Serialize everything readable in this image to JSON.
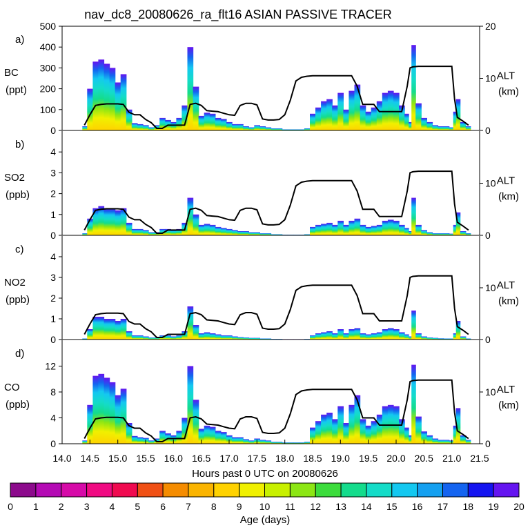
{
  "title": "nav_dc8_20080626_ra_flt16 ASIAN PASSIVE TRACER",
  "xaxis": {
    "label": "Hours past 0 UTC on 20080626",
    "range": [
      14.0,
      21.5
    ],
    "ticks": [
      14.0,
      14.5,
      15.0,
      15.5,
      16.0,
      16.5,
      17.0,
      17.5,
      18.0,
      18.5,
      19.0,
      19.5,
      20.0,
      20.5,
      21.0,
      21.5
    ],
    "tick_labels": [
      "14.0",
      "14.5",
      "15.0",
      "15.5",
      "16.0",
      "16.5",
      "17.0",
      "17.5",
      "18.0",
      "18.5",
      "19.0",
      "19.5",
      "20.0",
      "20.5",
      "21.0",
      "21.5"
    ]
  },
  "colorbar": {
    "label": "Age (days)",
    "tick_labels": [
      "0",
      "1",
      "2",
      "3",
      "4",
      "5",
      "6",
      "7",
      "8",
      "9",
      "10",
      "11",
      "12",
      "13",
      "14",
      "15",
      "16",
      "17",
      "18",
      "19",
      "20"
    ],
    "colors": [
      "#8c0a8c",
      "#b40ab4",
      "#d60aa8",
      "#f00a82",
      "#f00a50",
      "#f05014",
      "#f58c00",
      "#fab400",
      "#ffd200",
      "#f0f000",
      "#c8f000",
      "#8ce614",
      "#3cdc3c",
      "#14dc8c",
      "#14dcc8",
      "#14c8f0",
      "#14a0f0",
      "#1464f0",
      "#1414f0",
      "#6414f0"
    ]
  },
  "altitude_axis": {
    "label_line1": "ALT",
    "label_line2": "(km)",
    "range": [
      0,
      20
    ],
    "ticks_top": [
      "20",
      "10",
      "0"
    ],
    "ticks": [
      "10",
      "0"
    ]
  },
  "chart_data": [
    {
      "type": "area",
      "panel": "a)",
      "species": "BC",
      "units": "(ppt)",
      "ylim": [
        0,
        500
      ],
      "yticks": [
        0,
        100,
        200,
        300,
        400,
        500
      ],
      "ytick_labels": [
        "0",
        "100",
        "200",
        "300",
        "400",
        "500"
      ],
      "show_alt_top": true,
      "x": [
        14.4,
        14.5,
        14.6,
        14.7,
        14.8,
        14.9,
        15.0,
        15.1,
        15.2,
        15.3,
        15.4,
        15.5,
        15.6,
        15.7,
        15.8,
        15.9,
        16.0,
        16.1,
        16.2,
        16.3,
        16.4,
        16.5,
        16.6,
        16.7,
        16.8,
        16.9,
        17.0,
        17.1,
        17.2,
        17.3,
        17.4,
        17.5,
        17.6,
        17.7,
        17.8,
        17.9,
        18.0,
        18.1,
        18.2,
        18.3,
        18.4,
        18.5,
        18.6,
        18.7,
        18.8,
        18.9,
        19.0,
        19.1,
        19.2,
        19.3,
        19.4,
        19.5,
        19.6,
        19.7,
        19.8,
        19.9,
        20.0,
        20.1,
        20.2,
        20.25,
        20.3,
        20.4,
        20.5,
        20.6,
        20.7,
        20.8,
        20.9,
        21.0,
        21.05,
        21.1,
        21.2,
        21.3
      ],
      "tracer": [
        20,
        200,
        330,
        340,
        320,
        300,
        230,
        270,
        100,
        35,
        30,
        25,
        15,
        25,
        60,
        50,
        40,
        60,
        120,
        400,
        210,
        70,
        85,
        80,
        60,
        55,
        40,
        30,
        30,
        20,
        15,
        25,
        20,
        15,
        10,
        10,
        5,
        5,
        5,
        5,
        10,
        80,
        110,
        140,
        150,
        120,
        180,
        100,
        190,
        220,
        120,
        90,
        110,
        140,
        180,
        190,
        180,
        120,
        80,
        40,
        410,
        130,
        60,
        40,
        25,
        20,
        20,
        15,
        90,
        150,
        40,
        20
      ],
      "altitude": [
        1,
        3,
        4.8,
        5,
        5.1,
        5.1,
        5.1,
        5,
        3.5,
        3,
        3,
        2.1,
        1.5,
        0.4,
        0.4,
        1,
        1,
        1,
        1,
        5,
        5.2,
        4.8,
        3.8,
        3.7,
        3.6,
        3.3,
        3,
        2.9,
        4.8,
        5.2,
        5.2,
        4.9,
        2.2,
        2,
        2,
        2.1,
        3,
        5.8,
        9.5,
        10.2,
        10.4,
        10.5,
        10.5,
        10.5,
        10.5,
        10.5,
        10.5,
        10.5,
        10.5,
        8.5,
        5,
        5,
        5,
        3.6,
        3.6,
        3.6,
        3.6,
        3.6,
        8.5,
        12,
        12.2,
        12.3,
        12.3,
        12.3,
        12.3,
        12.3,
        12.3,
        12.3,
        6,
        2.5,
        1.8,
        1
      ]
    },
    {
      "type": "area",
      "panel": "b)",
      "species": "SO2",
      "units": "(ppb)",
      "ylim": [
        0,
        5
      ],
      "yticks": [
        0,
        1,
        2,
        3,
        4
      ],
      "ytick_labels": [
        "0",
        "1",
        "2",
        "3",
        "4"
      ],
      "show_alt_top": false,
      "x": [
        14.4,
        14.5,
        14.6,
        14.7,
        14.8,
        14.9,
        15.0,
        15.1,
        15.2,
        15.3,
        15.4,
        15.5,
        15.6,
        15.7,
        15.8,
        15.9,
        16.0,
        16.1,
        16.2,
        16.3,
        16.4,
        16.5,
        16.6,
        16.7,
        16.8,
        16.9,
        17.0,
        17.1,
        17.2,
        17.3,
        17.4,
        17.5,
        17.6,
        17.7,
        17.8,
        17.9,
        18.0,
        18.1,
        18.2,
        18.3,
        18.4,
        18.5,
        18.6,
        18.7,
        18.8,
        18.9,
        19.0,
        19.1,
        19.2,
        19.3,
        19.4,
        19.5,
        19.6,
        19.7,
        19.8,
        19.9,
        20.0,
        20.1,
        20.2,
        20.25,
        20.3,
        20.4,
        20.5,
        20.6,
        20.7,
        20.8,
        20.9,
        21.0,
        21.05,
        21.1,
        21.2,
        21.3
      ],
      "tracer": [
        0.1,
        0.8,
        1.3,
        1.4,
        1.3,
        1.3,
        1.2,
        1.3,
        0.6,
        0.3,
        0.3,
        0.25,
        0.15,
        0.15,
        0.3,
        0.3,
        0.25,
        0.3,
        0.6,
        1.8,
        1,
        0.5,
        0.55,
        0.5,
        0.4,
        0.35,
        0.3,
        0.25,
        0.2,
        0.2,
        0.15,
        0.15,
        0.1,
        0.1,
        0.05,
        0.05,
        0.03,
        0.03,
        0.03,
        0.03,
        0.05,
        0.4,
        0.5,
        0.55,
        0.6,
        0.5,
        0.7,
        0.5,
        0.7,
        0.8,
        0.5,
        0.4,
        0.45,
        0.5,
        0.7,
        0.75,
        0.7,
        0.5,
        0.35,
        0.2,
        1.8,
        0.5,
        0.25,
        0.15,
        0.1,
        0.1,
        0.1,
        0.08,
        0.5,
        1.1,
        0.2,
        0.1
      ],
      "altitude": [
        1,
        3,
        4.8,
        5,
        5.1,
        5.1,
        5.1,
        5,
        3.5,
        3,
        3,
        2.1,
        1.5,
        0.4,
        0.4,
        1,
        1,
        1,
        1,
        5,
        5.2,
        4.8,
        3.8,
        3.7,
        3.6,
        3.3,
        3,
        2.9,
        4.8,
        5.2,
        5.2,
        4.9,
        2.2,
        2,
        2,
        2.1,
        3,
        5.8,
        9.5,
        10.2,
        10.4,
        10.5,
        10.5,
        10.5,
        10.5,
        10.5,
        10.5,
        10.5,
        10.5,
        8.5,
        5,
        5,
        5,
        3.6,
        3.6,
        3.6,
        3.6,
        3.6,
        8.5,
        12,
        12.2,
        12.3,
        12.3,
        12.3,
        12.3,
        12.3,
        12.3,
        12.3,
        6,
        2.5,
        1.8,
        1
      ]
    },
    {
      "type": "area",
      "panel": "c)",
      "species": "NO2",
      "units": "(ppb)",
      "ylim": [
        0,
        5
      ],
      "yticks": [
        0,
        1,
        2,
        3,
        4
      ],
      "ytick_labels": [
        "0",
        "1",
        "2",
        "3",
        "4"
      ],
      "show_alt_top": false,
      "x": [
        14.4,
        14.5,
        14.6,
        14.7,
        14.8,
        14.9,
        15.0,
        15.1,
        15.2,
        15.3,
        15.4,
        15.5,
        15.6,
        15.7,
        15.8,
        15.9,
        16.0,
        16.1,
        16.2,
        16.3,
        16.4,
        16.5,
        16.6,
        16.7,
        16.8,
        16.9,
        17.0,
        17.1,
        17.2,
        17.3,
        17.4,
        17.5,
        17.6,
        17.7,
        17.8,
        17.9,
        18.0,
        18.1,
        18.2,
        18.3,
        18.4,
        18.5,
        18.6,
        18.7,
        18.8,
        18.9,
        19.0,
        19.1,
        19.2,
        19.3,
        19.4,
        19.5,
        19.6,
        19.7,
        19.8,
        19.9,
        20.0,
        20.1,
        20.2,
        20.25,
        20.3,
        20.4,
        20.5,
        20.6,
        20.7,
        20.8,
        20.9,
        21.0,
        21.05,
        21.1,
        21.2,
        21.3
      ],
      "tracer": [
        0.05,
        0.5,
        1.1,
        1.1,
        1.0,
        1.0,
        0.9,
        1.0,
        0.4,
        0.2,
        0.2,
        0.15,
        0.1,
        0.1,
        0.2,
        0.2,
        0.15,
        0.2,
        0.4,
        1.6,
        0.7,
        0.3,
        0.35,
        0.3,
        0.25,
        0.2,
        0.2,
        0.15,
        0.12,
        0.1,
        0.08,
        0.08,
        0.05,
        0.05,
        0.03,
        0.03,
        0.02,
        0.02,
        0.02,
        0.02,
        0.03,
        0.2,
        0.3,
        0.35,
        0.4,
        0.3,
        0.5,
        0.3,
        0.5,
        0.55,
        0.3,
        0.25,
        0.3,
        0.35,
        0.5,
        0.55,
        0.5,
        0.35,
        0.25,
        0.15,
        1.4,
        0.3,
        0.15,
        0.1,
        0.08,
        0.06,
        0.05,
        0.05,
        0.3,
        0.9,
        0.15,
        0.05
      ],
      "altitude": [
        1,
        3,
        4.8,
        5,
        5.1,
        5.1,
        5.1,
        5,
        3.5,
        3,
        3,
        2.1,
        1.5,
        0.4,
        0.4,
        1,
        1,
        1,
        1,
        5,
        5.2,
        4.8,
        3.8,
        3.7,
        3.6,
        3.3,
        3,
        2.9,
        4.8,
        5.2,
        5.2,
        4.9,
        2.2,
        2,
        2,
        2.1,
        3,
        5.8,
        9.5,
        10.2,
        10.4,
        10.5,
        10.5,
        10.5,
        10.5,
        10.5,
        10.5,
        10.5,
        10.5,
        8.5,
        5,
        5,
        5,
        3.6,
        3.6,
        3.6,
        3.6,
        3.6,
        8.5,
        12,
        12.2,
        12.3,
        12.3,
        12.3,
        12.3,
        12.3,
        12.3,
        12.3,
        6,
        2.5,
        1.8,
        1
      ]
    },
    {
      "type": "area",
      "panel": "d)",
      "species": "CO",
      "units": "(ppb)",
      "ylim": [
        0,
        16
      ],
      "yticks": [
        0,
        4,
        8,
        12
      ],
      "ytick_labels": [
        "0",
        "4",
        "8",
        "12"
      ],
      "show_alt_top": false,
      "x": [
        14.4,
        14.5,
        14.6,
        14.7,
        14.8,
        14.9,
        15.0,
        15.1,
        15.2,
        15.3,
        15.4,
        15.5,
        15.6,
        15.7,
        15.8,
        15.9,
        16.0,
        16.1,
        16.2,
        16.3,
        16.4,
        16.5,
        16.6,
        16.7,
        16.8,
        16.9,
        17.0,
        17.1,
        17.2,
        17.3,
        17.4,
        17.5,
        17.6,
        17.7,
        17.8,
        17.9,
        18.0,
        18.1,
        18.2,
        18.3,
        18.4,
        18.5,
        18.6,
        18.7,
        18.8,
        18.9,
        19.0,
        19.1,
        19.2,
        19.3,
        19.4,
        19.5,
        19.6,
        19.7,
        19.8,
        19.9,
        20.0,
        20.1,
        20.2,
        20.25,
        20.3,
        20.4,
        20.5,
        20.6,
        20.7,
        20.8,
        20.9,
        21.0,
        21.05,
        21.1,
        21.2,
        21.3
      ],
      "tracer": [
        0.5,
        6,
        10.5,
        10.8,
        10.2,
        9.5,
        7.5,
        8.5,
        3.2,
        1.2,
        1,
        0.9,
        0.5,
        0.8,
        2,
        1.6,
        1.3,
        2,
        4,
        12,
        6.8,
        2.3,
        2.8,
        2.6,
        2,
        1.8,
        1.3,
        1,
        1,
        0.7,
        0.5,
        0.8,
        0.6,
        0.5,
        0.3,
        0.3,
        0.2,
        0.2,
        0.2,
        0.2,
        0.3,
        2.5,
        3.5,
        4.5,
        4.8,
        3.8,
        5.8,
        3.2,
        6,
        7.5,
        3.8,
        2.8,
        3.5,
        4.5,
        5.8,
        6,
        5.8,
        3.8,
        2.5,
        1.3,
        12.2,
        4.2,
        1.9,
        1.3,
        0.8,
        0.6,
        0.6,
        0.5,
        2.8,
        5.5,
        1.3,
        0.6
      ],
      "altitude": [
        1,
        3,
        4.8,
        5,
        5.1,
        5.1,
        5.1,
        5,
        3.5,
        3,
        3,
        2.1,
        1.5,
        0.4,
        0.4,
        1,
        1,
        1,
        1,
        5,
        5.2,
        4.8,
        3.8,
        3.7,
        3.6,
        3.3,
        3,
        2.9,
        4.8,
        5.2,
        5.2,
        4.9,
        2.2,
        2,
        2,
        2.1,
        3,
        5.8,
        9.5,
        10.2,
        10.4,
        10.5,
        10.5,
        10.5,
        10.5,
        10.5,
        10.5,
        10.5,
        10.5,
        8.5,
        5,
        5,
        5,
        3.6,
        3.6,
        3.6,
        3.6,
        3.6,
        8.5,
        12,
        12.2,
        12.3,
        12.3,
        12.3,
        12.3,
        12.3,
        12.3,
        12.3,
        6,
        2.5,
        1.8,
        1
      ]
    }
  ]
}
